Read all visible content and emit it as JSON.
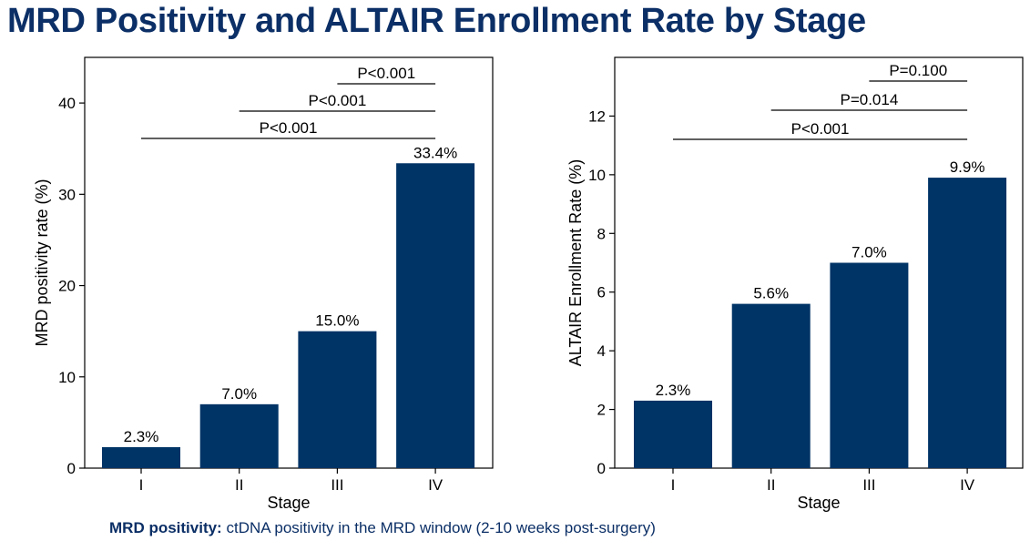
{
  "title": "MRD Positivity and ALTAIR Enrollment Rate by Stage",
  "footnote": {
    "label": "MRD positivity:",
    "text": "ctDNA positivity in the MRD window (2-10 weeks post-surgery)"
  },
  "colors": {
    "bar": "#003366",
    "title": "#0b2f66",
    "axis": "#000000"
  },
  "chart_data": [
    {
      "type": "bar",
      "categories": [
        "I",
        "II",
        "III",
        "IV"
      ],
      "values": [
        2.3,
        7.0,
        15.0,
        33.4
      ],
      "value_labels": [
        "2.3%",
        "7.0%",
        "15.0%",
        "33.4%"
      ],
      "xlabel": "Stage",
      "ylabel": "MRD positivity rate (%)",
      "ylim": [
        0,
        45
      ],
      "yticks": [
        0,
        10,
        20,
        30,
        40
      ],
      "grid": false,
      "annotations": [
        {
          "text": "P<0.001",
          "from": "I",
          "to": "IV"
        },
        {
          "text": "P<0.001",
          "from": "II",
          "to": "IV"
        },
        {
          "text": "P<0.001",
          "from": "III",
          "to": "IV"
        }
      ]
    },
    {
      "type": "bar",
      "categories": [
        "I",
        "II",
        "III",
        "IV"
      ],
      "values": [
        2.3,
        5.6,
        7.0,
        9.9
      ],
      "value_labels": [
        "2.3%",
        "5.6%",
        "7.0%",
        "9.9%"
      ],
      "xlabel": "Stage",
      "ylabel": "ALTAIR Enrollment Rate (%)",
      "ylim": [
        0,
        14
      ],
      "yticks": [
        0,
        2,
        4,
        6,
        8,
        10,
        12
      ],
      "grid": false,
      "annotations": [
        {
          "text": "P<0.001",
          "from": "I",
          "to": "IV"
        },
        {
          "text": "P=0.014",
          "from": "II",
          "to": "IV"
        },
        {
          "text": "P=0.100",
          "from": "III",
          "to": "IV"
        }
      ]
    }
  ]
}
